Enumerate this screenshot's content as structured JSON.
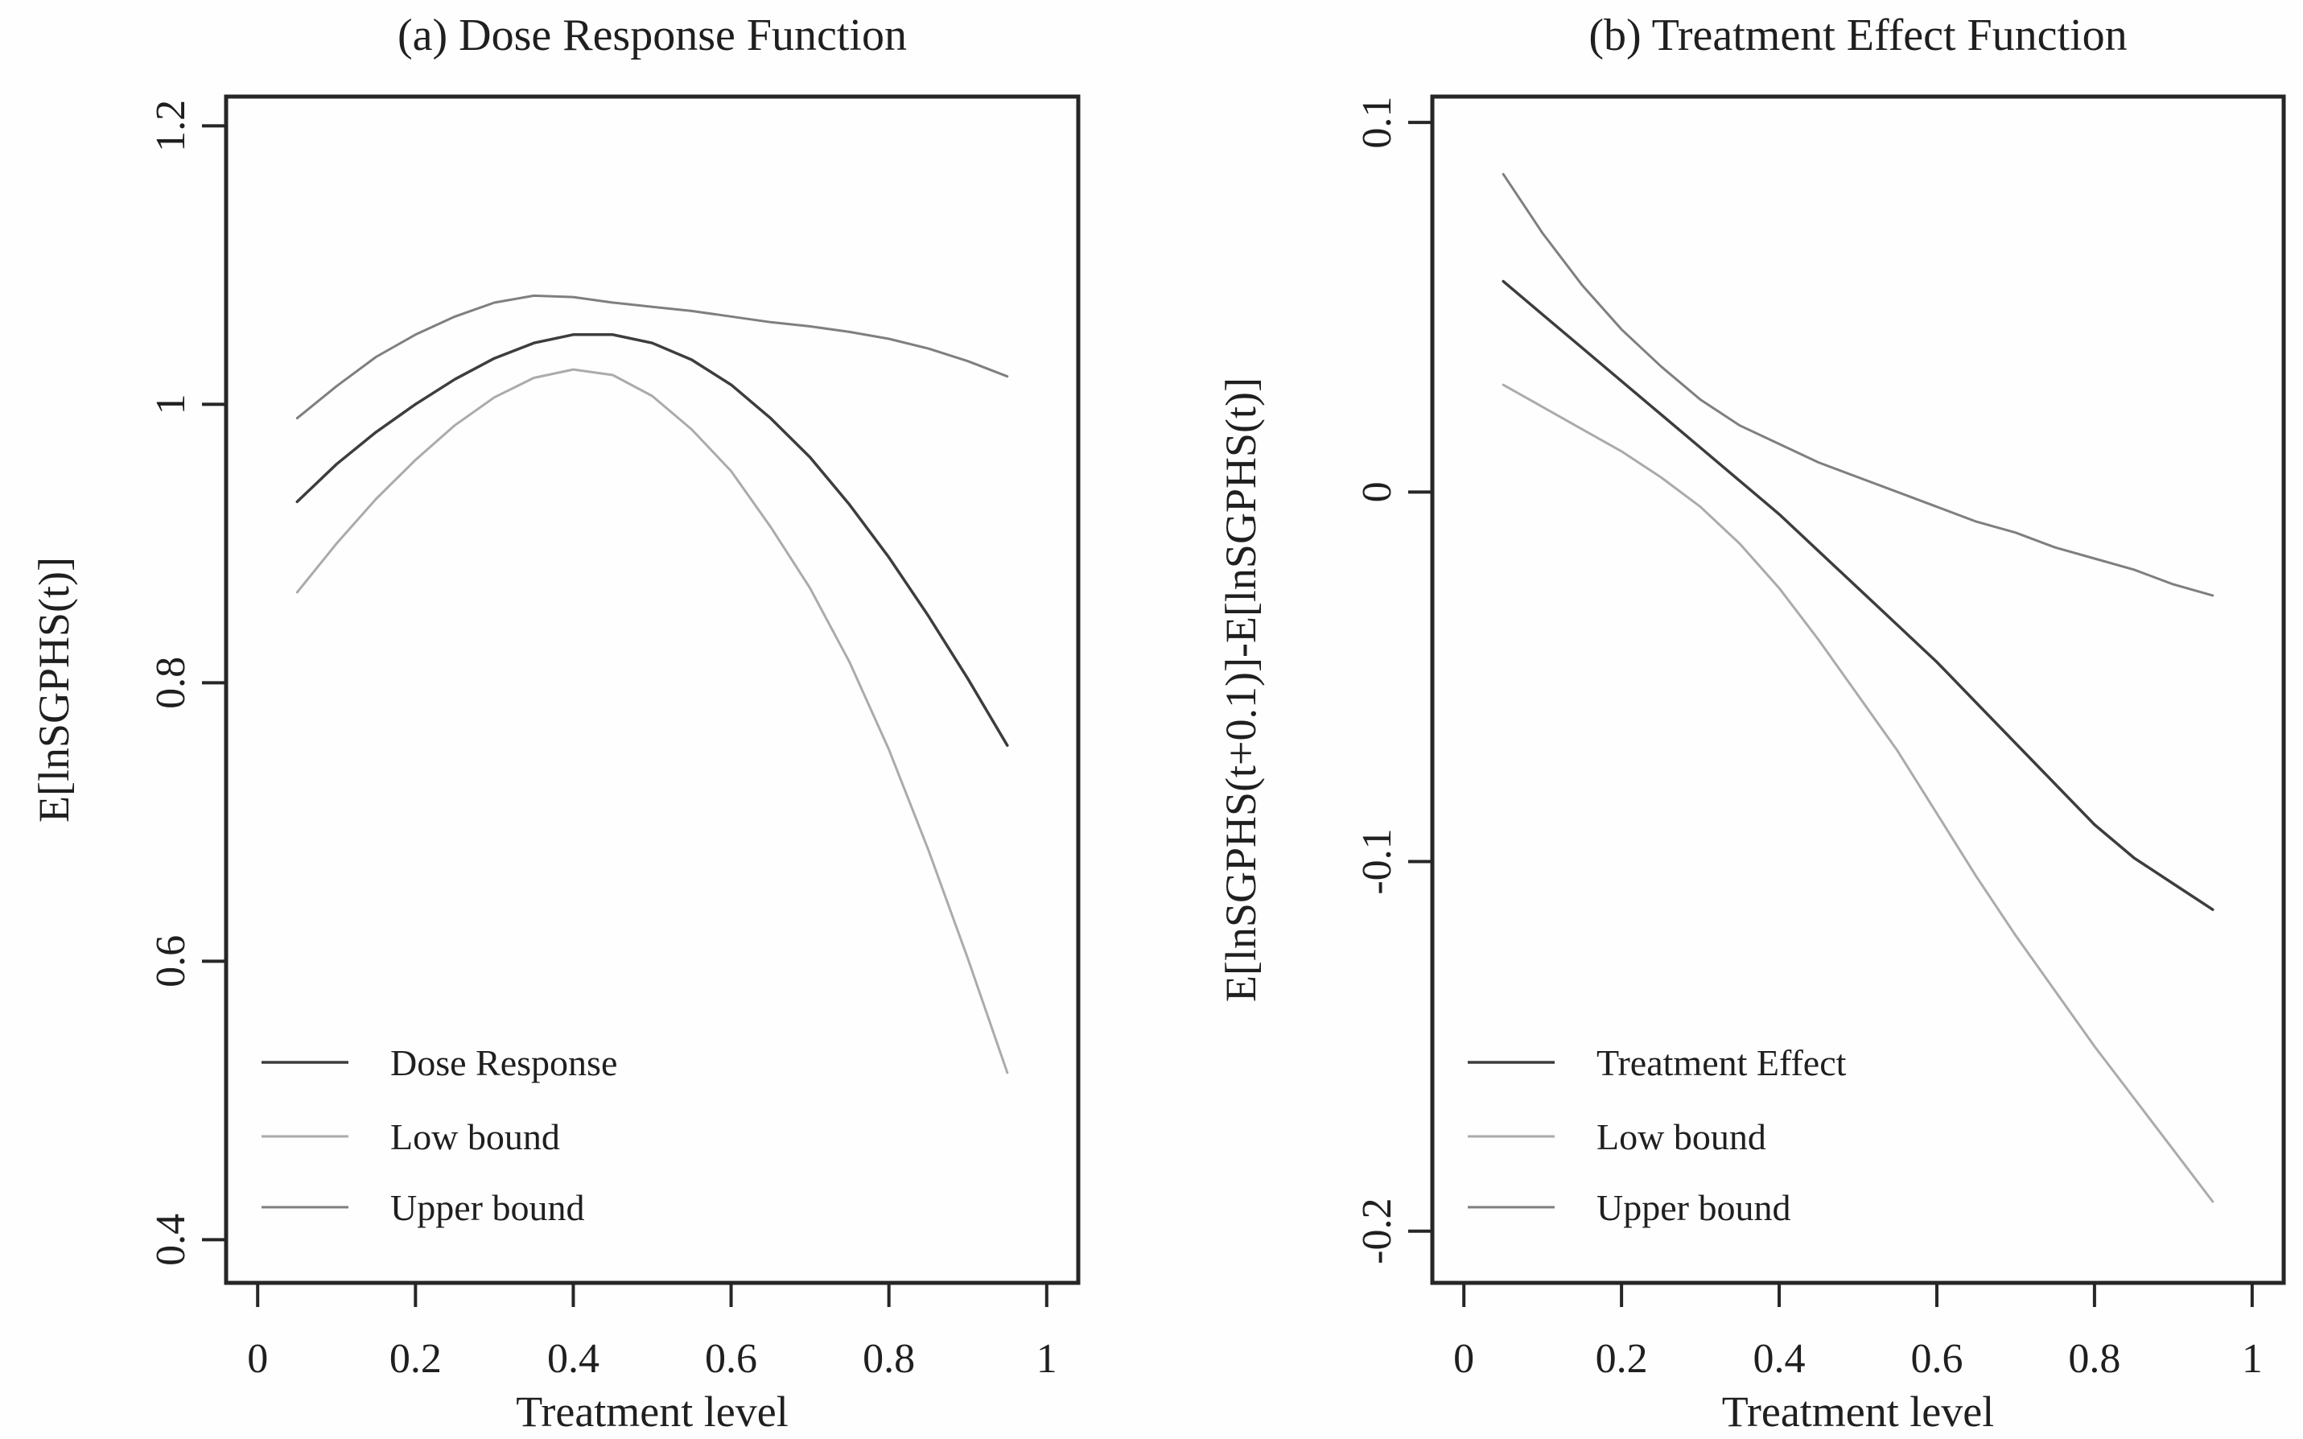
{
  "figure": {
    "background": "#fefefe",
    "axis_color": "#262626",
    "text_color": "#1f1f1f"
  },
  "chart_data": [
    {
      "panel": "a",
      "type": "line",
      "title": "(a) Dose Response Function",
      "xlabel": "Treatment level",
      "ylabel": "E[lnSGPHS(t)]",
      "xlim": [
        -0.04,
        1.04
      ],
      "ylim": [
        0.369,
        1.221
      ],
      "xticks": [
        0,
        0.2,
        0.4,
        0.6,
        0.8,
        1
      ],
      "xtick_labels": [
        "0",
        "0.2",
        "0.4",
        "0.6",
        "0.8",
        "1"
      ],
      "yticks": [
        0.4,
        0.6,
        0.8,
        1.0,
        1.2
      ],
      "ytick_labels": [
        "0.4",
        "0.6",
        "0.8",
        "1",
        "1.2"
      ],
      "grid": false,
      "legend_position": "bottom-left",
      "x": [
        0.05,
        0.1,
        0.15,
        0.2,
        0.25,
        0.3,
        0.35,
        0.4,
        0.45,
        0.5,
        0.55,
        0.6,
        0.65,
        0.7,
        0.75,
        0.8,
        0.85,
        0.9,
        0.95
      ],
      "series": [
        {
          "name": "Dose Response",
          "color": "#3d3d3d",
          "width": 3.5,
          "values": [
            0.93,
            0.957,
            0.98,
            1.0,
            1.018,
            1.033,
            1.044,
            1.05,
            1.05,
            1.044,
            1.032,
            1.014,
            0.99,
            0.962,
            0.928,
            0.89,
            0.848,
            0.803,
            0.755
          ]
        },
        {
          "name": "Low bound",
          "color": "#ababab",
          "width": 3,
          "values": [
            0.865,
            0.9,
            0.932,
            0.96,
            0.985,
            1.005,
            1.019,
            1.025,
            1.021,
            1.006,
            0.982,
            0.952,
            0.912,
            0.868,
            0.815,
            0.752,
            0.68,
            0.602,
            0.52
          ]
        },
        {
          "name": "Upper bound",
          "color": "#7f7f7f",
          "width": 3,
          "values": [
            0.99,
            1.013,
            1.034,
            1.05,
            1.063,
            1.073,
            1.078,
            1.077,
            1.073,
            1.07,
            1.067,
            1.063,
            1.059,
            1.056,
            1.052,
            1.047,
            1.04,
            1.031,
            1.02
          ]
        }
      ]
    },
    {
      "panel": "b",
      "type": "line",
      "title": "(b) Treatment Effect Function",
      "xlabel": "Treatment level",
      "ylabel": "E[lnSGPHS(t+0.1)]-E[lnSGPHS(t)]",
      "xlim": [
        -0.04,
        1.04
      ],
      "ylim": [
        -0.214,
        0.107
      ],
      "xticks": [
        0,
        0.2,
        0.4,
        0.6,
        0.8,
        1
      ],
      "xtick_labels": [
        "0",
        "0.2",
        "0.4",
        "0.6",
        "0.8",
        "1"
      ],
      "yticks": [
        -0.2,
        -0.1,
        0,
        0.1
      ],
      "ytick_labels": [
        "-0.2",
        "-0.1",
        "0",
        "0.1"
      ],
      "grid": false,
      "legend_position": "bottom-left",
      "x": [
        0.05,
        0.1,
        0.15,
        0.2,
        0.25,
        0.3,
        0.35,
        0.4,
        0.45,
        0.5,
        0.55,
        0.6,
        0.65,
        0.7,
        0.75,
        0.8,
        0.85,
        0.9,
        0.95
      ],
      "series": [
        {
          "name": "Treatment Effect",
          "color": "#3d3d3d",
          "width": 3.5,
          "values": [
            0.057,
            0.048,
            0.039,
            0.03,
            0.021,
            0.012,
            0.003,
            -0.006,
            -0.016,
            -0.026,
            -0.036,
            -0.046,
            -0.057,
            -0.068,
            -0.079,
            -0.09,
            -0.099,
            -0.106,
            -0.113
          ]
        },
        {
          "name": "Low bound",
          "color": "#ababab",
          "width": 3,
          "values": [
            0.029,
            0.023,
            0.017,
            0.011,
            0.004,
            -0.004,
            -0.014,
            -0.026,
            -0.04,
            -0.055,
            -0.07,
            -0.087,
            -0.104,
            -0.12,
            -0.135,
            -0.15,
            -0.164,
            -0.178,
            -0.192
          ]
        },
        {
          "name": "Upper bound",
          "color": "#7f7f7f",
          "width": 3,
          "values": [
            0.086,
            0.07,
            0.056,
            0.044,
            0.034,
            0.025,
            0.018,
            0.013,
            0.008,
            0.004,
            0.0,
            -0.004,
            -0.008,
            -0.011,
            -0.015,
            -0.018,
            -0.021,
            -0.025,
            -0.028
          ]
        }
      ]
    }
  ]
}
